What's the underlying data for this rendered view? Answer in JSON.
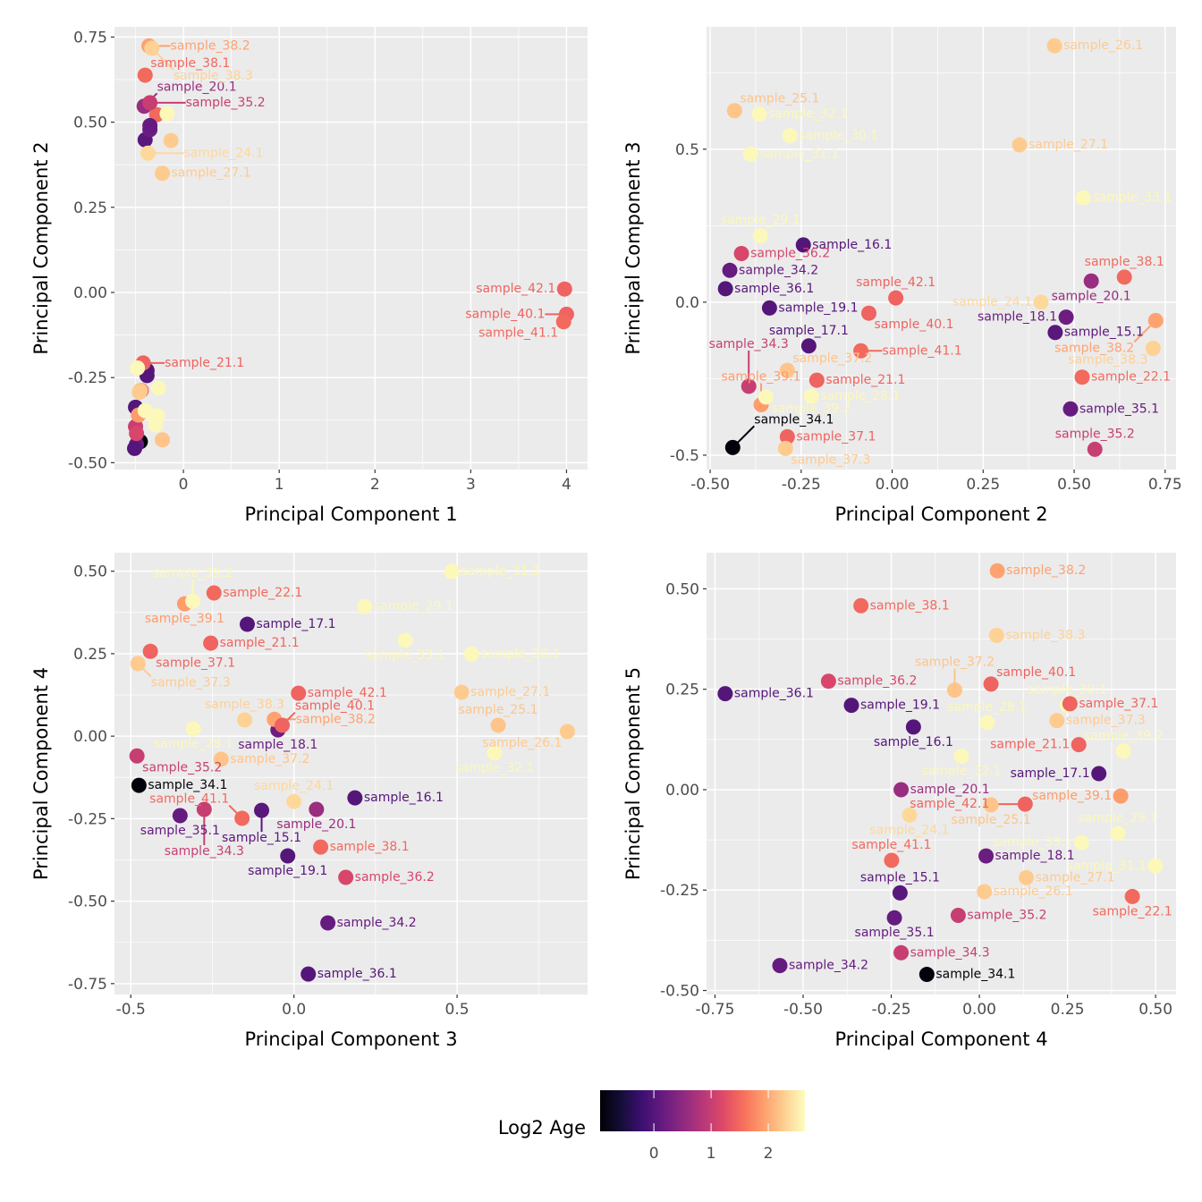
{
  "chart_data": {
    "type": "scatter",
    "color_variable": "Log2 Age",
    "colormap": "magma",
    "color_limits": [
      -0.94,
      2.64
    ],
    "samples": [
      {
        "name": "sample_15.1",
        "log2_age": 0.05,
        "pc": [
          -0.4,
          0.448,
          -0.099,
          -0.225,
          -0.257
        ]
      },
      {
        "name": "sample_16.1",
        "log2_age": 0.0,
        "pc": [
          -0.38,
          -0.244,
          0.187,
          -0.187,
          0.156
        ]
      },
      {
        "name": "sample_17.1",
        "log2_age": 0.0,
        "pc": [
          -0.38,
          -0.229,
          -0.143,
          0.339,
          0.04
        ]
      },
      {
        "name": "sample_18.1",
        "log2_age": 0.2,
        "pc": [
          -0.35,
          0.478,
          -0.049,
          0.019,
          -0.165
        ]
      },
      {
        "name": "sample_19.1",
        "log2_age": 0.0,
        "pc": [
          -0.5,
          -0.337,
          -0.019,
          -0.363,
          0.21
        ]
      },
      {
        "name": "sample_20.1",
        "log2_age": 0.6,
        "pc": [
          -0.41,
          0.547,
          0.069,
          -0.222,
          0.0
        ]
      },
      {
        "name": "sample_21.1",
        "log2_age": 1.45,
        "pc": [
          -0.42,
          -0.207,
          -0.255,
          0.282,
          0.112
        ]
      },
      {
        "name": "sample_22.1",
        "log2_age": 1.5,
        "pc": [
          -0.28,
          0.522,
          -0.245,
          0.434,
          -0.266
        ]
      },
      {
        "name": "sample_24.1",
        "log2_age": 2.35,
        "pc": [
          -0.37,
          0.409,
          0.0,
          -0.198,
          -0.063
        ]
      },
      {
        "name": "sample_25.1",
        "log2_age": 2.2,
        "pc": [
          -0.22,
          -0.433,
          0.626,
          0.033,
          -0.038
        ]
      },
      {
        "name": "sample_26.1",
        "log2_age": 2.25,
        "pc": [
          -0.13,
          0.446,
          0.838,
          0.014,
          -0.254
        ]
      },
      {
        "name": "sample_27.1",
        "log2_age": 2.25,
        "pc": [
          -0.22,
          0.35,
          0.514,
          0.133,
          -0.219
        ]
      },
      {
        "name": "sample_28.1",
        "log2_age": 2.6,
        "pc": [
          -0.48,
          -0.222,
          -0.308,
          0.022,
          0.167
        ]
      },
      {
        "name": "sample_29.1",
        "log2_age": 2.6,
        "pc": [
          -0.27,
          -0.362,
          0.217,
          0.393,
          -0.109
        ]
      },
      {
        "name": "sample_30.1",
        "log2_age": 2.6,
        "pc": [
          -0.26,
          -0.281,
          0.544,
          0.249,
          0.21
        ]
      },
      {
        "name": "sample_31.1",
        "log2_age": 2.6,
        "pc": [
          -0.29,
          -0.389,
          0.484,
          0.499,
          -0.19
        ]
      },
      {
        "name": "sample_32.1",
        "log2_age": 2.6,
        "pc": [
          -0.3,
          -0.365,
          0.615,
          -0.051,
          0.083
        ]
      },
      {
        "name": "sample_33.1",
        "log2_age": 2.6,
        "pc": [
          -0.17,
          0.525,
          0.341,
          0.29,
          -0.132
        ]
      },
      {
        "name": "sample_34.1",
        "log2_age": -0.9,
        "pc": [
          -0.45,
          -0.438,
          -0.475,
          -0.149,
          -0.46
        ]
      },
      {
        "name": "sample_34.2",
        "log2_age": 0.15,
        "pc": [
          -0.49,
          -0.446,
          0.104,
          -0.566,
          -0.438
        ]
      },
      {
        "name": "sample_34.3",
        "log2_age": 1.0,
        "pc": [
          -0.5,
          -0.394,
          -0.275,
          -0.222,
          -0.406
        ]
      },
      {
        "name": "sample_35.1",
        "log2_age": 0.15,
        "pc": [
          -0.35,
          0.49,
          -0.349,
          -0.241,
          -0.319
        ]
      },
      {
        "name": "sample_35.2",
        "log2_age": 1.0,
        "pc": [
          -0.35,
          0.557,
          -0.481,
          -0.06,
          -0.313
        ]
      },
      {
        "name": "sample_36.1",
        "log2_age": 0.0,
        "pc": [
          -0.51,
          -0.458,
          0.044,
          -0.721,
          0.239
        ]
      },
      {
        "name": "sample_36.2",
        "log2_age": 1.15,
        "pc": [
          -0.49,
          -0.414,
          0.159,
          -0.428,
          0.27
        ]
      },
      {
        "name": "sample_37.1",
        "log2_age": 1.45,
        "pc": [
          -0.44,
          -0.288,
          -0.44,
          0.257,
          0.214
        ]
      },
      {
        "name": "sample_37.2",
        "log2_age": 2.2,
        "pc": [
          -0.45,
          -0.288,
          -0.223,
          -0.07,
          0.248
        ]
      },
      {
        "name": "sample_37.3",
        "log2_age": 2.25,
        "pc": [
          -0.46,
          -0.293,
          -0.478,
          0.22,
          0.172
        ]
      },
      {
        "name": "sample_38.1",
        "log2_age": 1.5,
        "pc": [
          -0.4,
          0.638,
          0.082,
          -0.336,
          0.458
        ]
      },
      {
        "name": "sample_38.2",
        "log2_age": 1.95,
        "pc": [
          -0.36,
          0.724,
          -0.06,
          0.051,
          0.545
        ]
      },
      {
        "name": "sample_38.3",
        "log2_age": 2.3,
        "pc": [
          -0.33,
          0.717,
          -0.151,
          0.049,
          0.384
        ]
      },
      {
        "name": "sample_39.1",
        "log2_age": 1.9,
        "pc": [
          -0.47,
          -0.36,
          -0.335,
          0.401,
          -0.016
        ]
      },
      {
        "name": "sample_39.2",
        "log2_age": 2.6,
        "pc": [
          -0.4,
          -0.347,
          -0.31,
          0.409,
          0.096
        ]
      },
      {
        "name": "sample_40.1",
        "log2_age": 1.45,
        "pc": [
          4.0,
          -0.064,
          -0.036,
          0.033,
          0.263
        ]
      },
      {
        "name": "sample_41.1",
        "log2_age": 1.5,
        "pc": [
          3.97,
          -0.086,
          -0.159,
          -0.249,
          -0.176
        ]
      },
      {
        "name": "sample_42.1",
        "log2_age": 1.45,
        "pc": [
          3.98,
          0.01,
          0.014,
          0.13,
          -0.036
        ]
      }
    ],
    "panels": [
      {
        "xlabel": "Principal Component 1",
        "ylabel": "Principal Component 2",
        "x_pc": 1,
        "y_pc": 2,
        "xlim": [
          -0.72,
          4.22
        ],
        "ylim": [
          -0.52,
          0.78
        ],
        "xticks": [
          {
            "v": 0,
            "t": "0"
          },
          {
            "v": 1,
            "t": "1"
          },
          {
            "v": 2,
            "t": "2"
          },
          {
            "v": 3,
            "t": "3"
          },
          {
            "v": 4,
            "t": "4"
          }
        ],
        "yticks": [
          {
            "v": -0.5,
            "t": "-0.50"
          },
          {
            "v": -0.25,
            "t": "-0.25"
          },
          {
            "v": 0,
            "t": "0.00"
          },
          {
            "v": 0.25,
            "t": "0.25"
          },
          {
            "v": 0.5,
            "t": "0.50"
          },
          {
            "v": 0.75,
            "t": "0.75"
          }
        ],
        "labeled": [
          "sample_38.2",
          "sample_38.3",
          "sample_38.1",
          "sample_35.2",
          "sample_20.1",
          "sample_24.1",
          "sample_27.1",
          "sample_42.1",
          "sample_40.1",
          "sample_41.1",
          "sample_21.1"
        ]
      },
      {
        "xlabel": "Principal Component 2",
        "ylabel": "Principal Component 3",
        "x_pc": 2,
        "y_pc": 3,
        "xlim": [
          -0.51,
          0.78
        ],
        "ylim": [
          -0.547,
          0.9
        ],
        "xticks": [
          {
            "v": -0.5,
            "t": "-0.50"
          },
          {
            "v": -0.25,
            "t": "-0.25"
          },
          {
            "v": 0,
            "t": "0.00"
          },
          {
            "v": 0.25,
            "t": "0.25"
          },
          {
            "v": 0.5,
            "t": "0.50"
          },
          {
            "v": 0.75,
            "t": "0.75"
          }
        ],
        "yticks": [
          {
            "v": -0.5,
            "t": "-0.5"
          },
          {
            "v": 0,
            "t": "0.0"
          },
          {
            "v": 0.5,
            "t": "0.5"
          }
        ],
        "labeled": "all"
      },
      {
        "xlabel": "Principal Component 3",
        "ylabel": "Principal Component 4",
        "x_pc": 3,
        "y_pc": 4,
        "xlim": [
          -0.55,
          0.9
        ],
        "ylim": [
          -0.783,
          0.556
        ],
        "xticks": [
          {
            "v": -0.5,
            "t": "-0.5"
          },
          {
            "v": 0,
            "t": "0.0"
          },
          {
            "v": 0.5,
            "t": "0.5"
          }
        ],
        "yticks": [
          {
            "v": -0.75,
            "t": "-0.75"
          },
          {
            "v": -0.5,
            "t": "-0.50"
          },
          {
            "v": -0.25,
            "t": "-0.25"
          },
          {
            "v": 0,
            "t": "0.00"
          },
          {
            "v": 0.25,
            "t": "0.25"
          },
          {
            "v": 0.5,
            "t": "0.50"
          }
        ],
        "labeled": "all"
      },
      {
        "xlabel": "Principal Component 4",
        "ylabel": "Principal Component 5",
        "x_pc": 4,
        "y_pc": 5,
        "xlim": [
          -0.774,
          0.558
        ],
        "ylim": [
          -0.51,
          0.59
        ],
        "xticks": [
          {
            "v": -0.75,
            "t": "-0.75"
          },
          {
            "v": -0.5,
            "t": "-0.50"
          },
          {
            "v": -0.25,
            "t": "-0.25"
          },
          {
            "v": 0,
            "t": "0.00"
          },
          {
            "v": 0.25,
            "t": "0.25"
          },
          {
            "v": 0.5,
            "t": "0.50"
          }
        ],
        "yticks": [
          {
            "v": -0.5,
            "t": "-0.50"
          },
          {
            "v": -0.25,
            "t": "-0.25"
          },
          {
            "v": 0,
            "t": "0.00"
          },
          {
            "v": 0.25,
            "t": "0.25"
          },
          {
            "v": 0.5,
            "t": "0.50"
          }
        ],
        "labeled": "all"
      }
    ],
    "legend": {
      "title": "Log2 Age",
      "position": "bottom",
      "ticks": [
        {
          "v": 0,
          "t": "0"
        },
        {
          "v": 1,
          "t": "1"
        },
        {
          "v": 2,
          "t": "2"
        }
      ]
    }
  }
}
